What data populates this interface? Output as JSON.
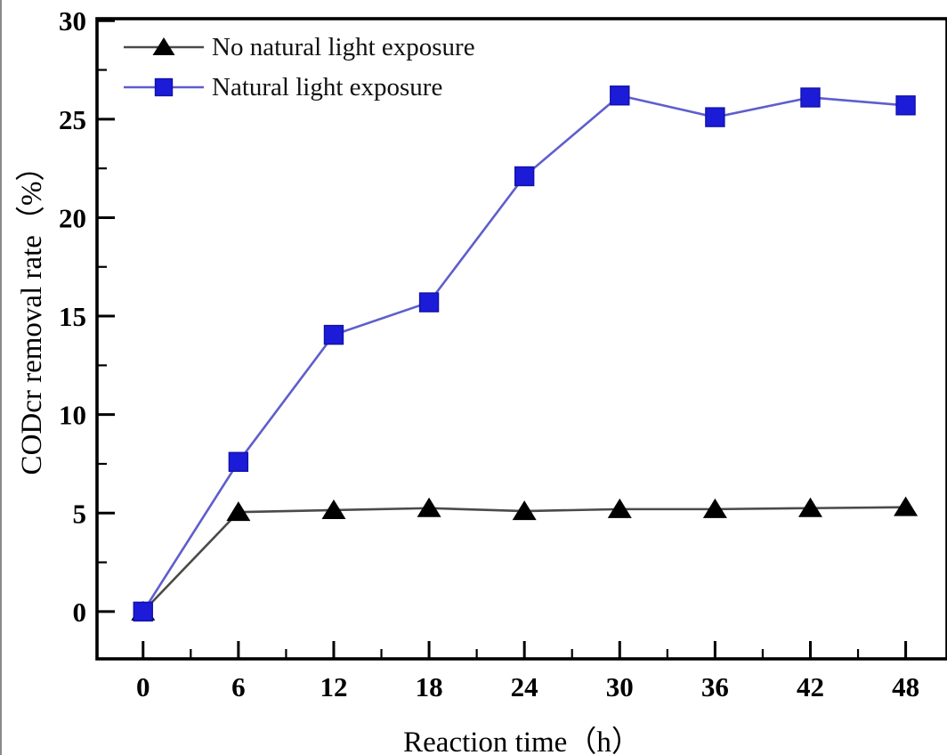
{
  "figure": {
    "background": "#ffffff",
    "frame_color": "#000000"
  },
  "chart_data": {
    "type": "line",
    "title": "",
    "xlabel": "Reaction time（h）",
    "ylabel": "CODcr removal rate（%）",
    "x": [
      0,
      6,
      12,
      18,
      24,
      30,
      36,
      42,
      48
    ],
    "series": [
      {
        "name": "No natural light exposure",
        "marker": "triangle",
        "marker_color": "#000000",
        "line_color": "#4a4a4a",
        "values": [
          0,
          5.05,
          5.15,
          5.25,
          5.1,
          5.2,
          5.2,
          5.25,
          5.3
        ]
      },
      {
        "name": "Natural light exposure",
        "marker": "square",
        "marker_color": "#1b1bd8",
        "line_color": "#5e5ecd",
        "values": [
          0,
          7.6,
          14.05,
          15.7,
          22.1,
          26.2,
          25.1,
          26.1,
          25.7
        ]
      }
    ],
    "xlim": [
      -2.9,
      50.6
    ],
    "ylim": [
      -2.4,
      30.1
    ],
    "x_major_ticks": [
      0,
      6,
      12,
      18,
      24,
      30,
      36,
      42,
      48
    ],
    "x_minor_ticks": [
      3,
      9,
      15,
      21,
      27,
      33,
      39,
      45
    ],
    "y_major_ticks": [
      0,
      5,
      10,
      15,
      20,
      25,
      30
    ],
    "y_minor_ticks": [
      2.5,
      7.5,
      12.5,
      17.5,
      22.5,
      27.5
    ],
    "grid": false,
    "legend_position": "top-left"
  }
}
